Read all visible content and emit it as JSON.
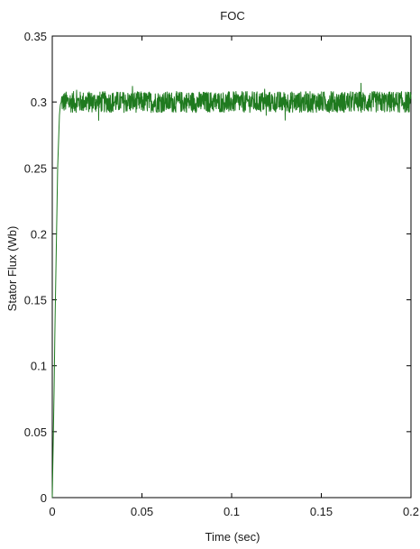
{
  "chart_data": {
    "type": "line",
    "title": "FOC",
    "xlabel": "Time (sec)",
    "ylabel": "Stator Flux (Wb)",
    "xlim": [
      0,
      0.2
    ],
    "ylim": [
      0,
      0.35
    ],
    "xticks": [
      "0",
      "0.05",
      "0.1",
      "0.15",
      "0.2"
    ],
    "yticks": [
      "0",
      "0.05",
      "0.1",
      "0.15",
      "0.2",
      "0.25",
      "0.3",
      "0.35"
    ],
    "grid": false,
    "series": [
      {
        "color": "#1f7a1f",
        "x": [
          0,
          0.0005,
          0.001,
          0.0015,
          0.002,
          0.0025,
          0.003,
          0.0035,
          0.004,
          0.0045,
          0.005,
          0.006,
          0.008,
          0.01,
          0.02,
          0.03,
          0.04,
          0.05,
          0.06,
          0.07,
          0.08,
          0.085,
          0.09,
          0.1,
          0.11,
          0.12,
          0.13,
          0.14,
          0.147,
          0.15,
          0.16,
          0.17,
          0.18,
          0.19,
          0.2
        ],
        "values": [
          0.0,
          0.04,
          0.08,
          0.13,
          0.17,
          0.21,
          0.25,
          0.27,
          0.29,
          0.298,
          0.3,
          0.3,
          0.3,
          0.3,
          0.3,
          0.3,
          0.3,
          0.3,
          0.3,
          0.3,
          0.3,
          0.3,
          0.3,
          0.3,
          0.3,
          0.3,
          0.3,
          0.3,
          0.3,
          0.3,
          0.3,
          0.3,
          0.3,
          0.3,
          0.3
        ],
        "noise_band": 0.008
      }
    ],
    "annotations": []
  }
}
